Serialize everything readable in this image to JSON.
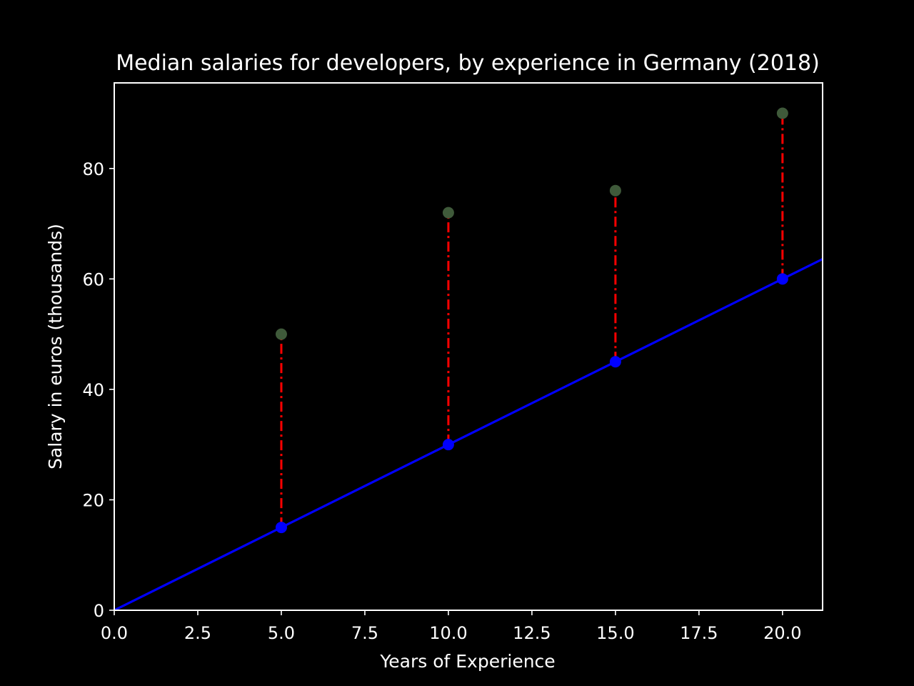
{
  "chart_data": {
    "type": "line",
    "title": "Median salaries for developers, by experience in Germany (2018)",
    "xlabel": "Years of Experience",
    "ylabel": "Salary in euros (thousands)",
    "xlim": [
      0,
      21.2
    ],
    "ylim": [
      0,
      95.5
    ],
    "x_ticks": [
      0,
      2.5,
      5,
      7.5,
      10,
      12.5,
      15,
      17.5,
      20
    ],
    "x_tick_labels": [
      "0.0",
      "2.5",
      "5.0",
      "7.5",
      "10.0",
      "12.5",
      "15.0",
      "17.5",
      "20.0"
    ],
    "y_ticks": [
      0,
      20,
      40,
      60,
      80
    ],
    "y_tick_labels": [
      "0",
      "20",
      "40",
      "60",
      "80"
    ],
    "grid": false,
    "background": "#000000",
    "series": [
      {
        "kind": "scatter",
        "color": "#3f5a3a",
        "points": [
          {
            "x": 5,
            "y": 50
          },
          {
            "x": 10,
            "y": 72
          },
          {
            "x": 15,
            "y": 76
          },
          {
            "x": 20,
            "y": 90
          }
        ]
      },
      {
        "kind": "fit-line",
        "color": "#0000ff",
        "slope": 3,
        "intercept": 0,
        "x_range": [
          0,
          21.2
        ]
      },
      {
        "kind": "scatter",
        "color": "#0000ff",
        "points": [
          {
            "x": 5,
            "y": 15
          },
          {
            "x": 10,
            "y": 30
          },
          {
            "x": 15,
            "y": 45
          },
          {
            "x": 20,
            "y": 60
          }
        ]
      }
    ],
    "residuals": {
      "color": "#ff0000",
      "style": "dash-dot",
      "segments": [
        {
          "x": 5,
          "y_from": 15,
          "y_to": 50
        },
        {
          "x": 10,
          "y_from": 30,
          "y_to": 72
        },
        {
          "x": 15,
          "y_from": 45,
          "y_to": 76
        },
        {
          "x": 20,
          "y_from": 60,
          "y_to": 90
        }
      ]
    }
  }
}
